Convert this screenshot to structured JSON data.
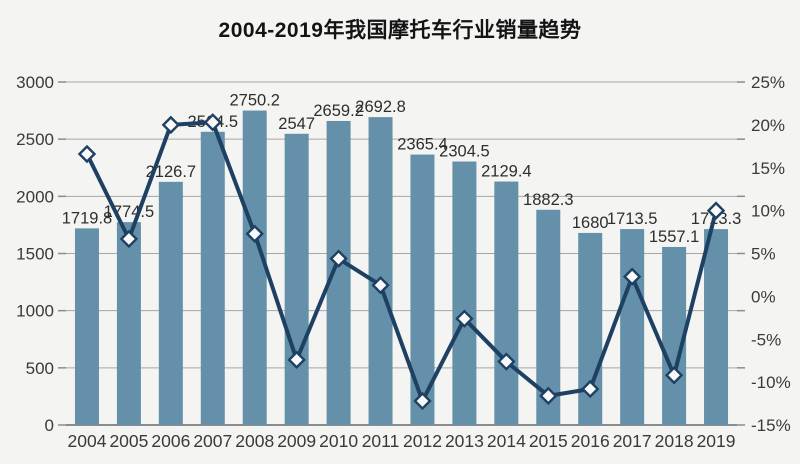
{
  "colors": {
    "background": "#f4f4f2",
    "bar": "#6590a9",
    "line": "#1e4163",
    "marker_fill": "#fafafa",
    "grid": "#a6a6a6",
    "axis": "#8c8c8c",
    "label_text": "#2e2e2e",
    "axis_text": "#3a3a3a",
    "title_text": "#141414"
  },
  "chart_data": {
    "type": "combo-bar-line",
    "title": "2004-2019年我国摩托车行业销量趋势",
    "categories": [
      "2004",
      "2005",
      "2006",
      "2007",
      "2008",
      "2009",
      "2010",
      "2011",
      "2012",
      "2013",
      "2014",
      "2015",
      "2016",
      "2017",
      "2018",
      "2019"
    ],
    "series": [
      {
        "name": "sales_volume",
        "type": "bar",
        "axis": "left",
        "values": [
          1719.8,
          1774.5,
          2126.7,
          2564.5,
          2750.2,
          2547,
          2659.2,
          2692.8,
          2365.4,
          2304.5,
          2129.4,
          1882.3,
          1680,
          1713.5,
          1557.1,
          1713.3
        ],
        "value_labels": [
          "1719.8",
          "1774.5",
          "2126.7",
          "2564.5",
          "2750.2",
          "2547",
          "2659.2",
          "2692.8",
          "2365.4",
          "2304.5",
          "2129.4",
          "1882.3",
          "1680",
          "1713.5",
          "1557.1",
          "1713.3"
        ]
      },
      {
        "name": "yoy_growth_pct",
        "type": "line",
        "axis": "right",
        "marker": "diamond",
        "values": [
          16.6,
          6.7,
          20.0,
          20.3,
          7.3,
          -7.4,
          4.4,
          1.3,
          -12.2,
          -2.6,
          -7.6,
          -11.6,
          -10.8,
          2.3,
          -9.2,
          10.0
        ]
      }
    ],
    "left_axis": {
      "min": 0,
      "max": 3000,
      "step": 500,
      "tick_labels": [
        "3000",
        "2500",
        "2000",
        "1500",
        "1000",
        "500",
        "0"
      ]
    },
    "right_axis": {
      "min": -15,
      "max": 25,
      "step": 5,
      "tick_labels": [
        "25%",
        "20%",
        "15%",
        "10%",
        "5%",
        "0%",
        "-5%",
        "-10%",
        "-15%"
      ]
    },
    "grid": true,
    "legend": "none"
  }
}
